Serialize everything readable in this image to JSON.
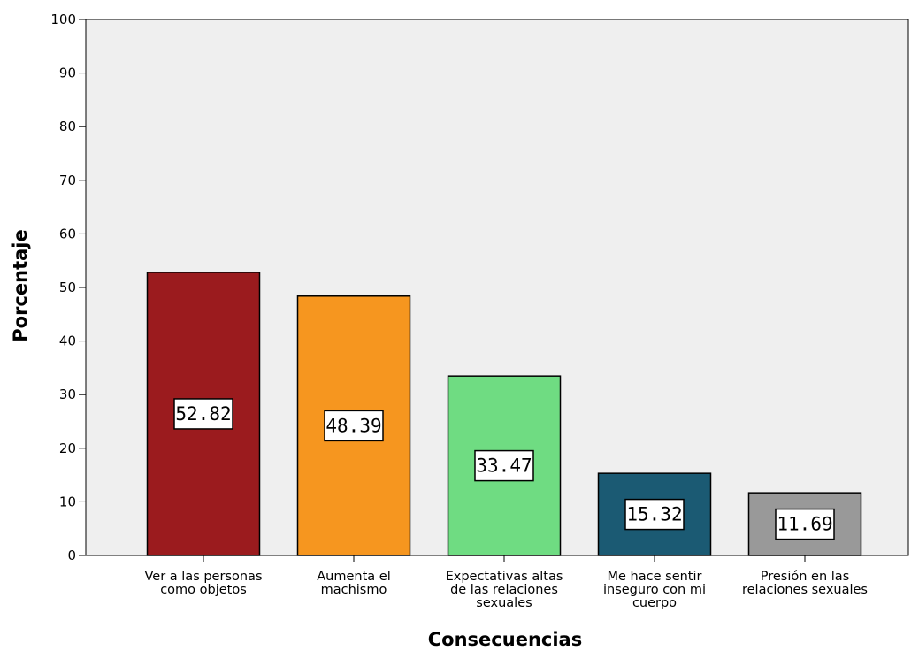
{
  "chart_data": {
    "type": "bar",
    "categories": [
      [
        "Ver a las personas",
        "como objetos"
      ],
      [
        "Aumenta el",
        "machismo"
      ],
      [
        "Expectativas altas",
        "de las relaciones",
        "sexuales"
      ],
      [
        "Me hace sentir",
        "inseguro con mi",
        "cuerpo"
      ],
      [
        "Presión en las",
        "relaciones sexuales"
      ]
    ],
    "values": [
      52.82,
      48.39,
      33.47,
      15.32,
      11.69
    ],
    "data_labels": [
      "52.82",
      "48.39",
      "33.47",
      "15.32",
      "11.69"
    ],
    "colors": [
      "#9b1b1e",
      "#f6961f",
      "#6fdc82",
      "#1b5a73",
      "#999999"
    ],
    "xlabel": "Consecuencias",
    "ylabel": "Porcentaje",
    "ylim": [
      0,
      100
    ],
    "yticks": [
      0,
      10,
      20,
      30,
      40,
      50,
      60,
      70,
      80,
      90,
      100
    ],
    "plot_background": "#efefef",
    "grid": false,
    "legend": "none"
  }
}
